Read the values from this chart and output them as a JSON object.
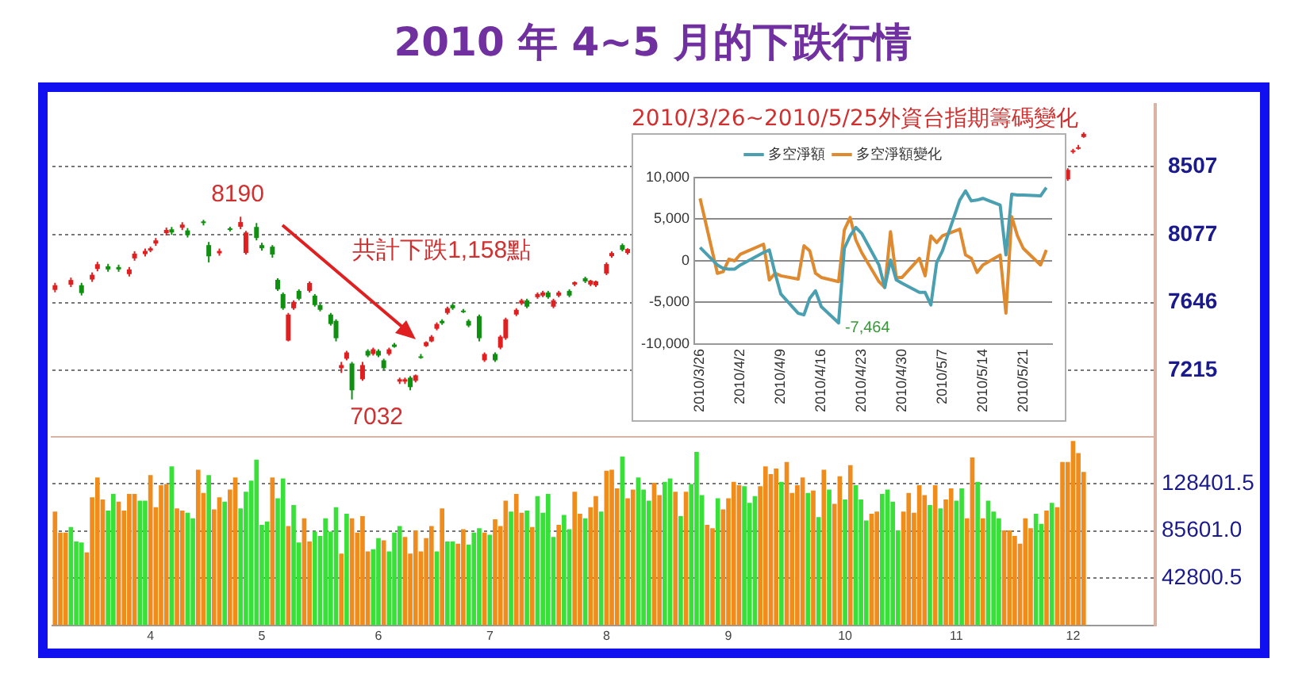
{
  "chart_data": [
    {
      "type": "candlestick",
      "title": "2010 年 4~5 月的下跌行情",
      "categories": [
        null,
        null,
        null,
        null,
        null,
        null,
        null,
        null,
        null,
        null,
        null,
        null,
        null,
        null,
        null,
        null,
        null,
        null,
        "4",
        null,
        null,
        null,
        null,
        null,
        null,
        null,
        null,
        null,
        null,
        null,
        null,
        null,
        null,
        null,
        null,
        null,
        null,
        null,
        null,
        "5",
        null,
        null,
        null,
        null,
        null,
        null,
        null,
        null,
        null,
        null,
        null,
        null,
        null,
        null,
        null,
        null,
        null,
        null,
        null,
        null,
        null,
        "6",
        null,
        null,
        null,
        null,
        null,
        null,
        null,
        null,
        null,
        null,
        null,
        null,
        null,
        null,
        null,
        null,
        null,
        null,
        null,
        null,
        "7",
        null,
        null,
        null,
        null,
        null,
        null,
        null,
        null,
        null,
        null,
        null,
        null,
        null,
        null,
        null,
        null,
        null,
        null,
        null,
        null,
        null,
        "8",
        null,
        null,
        null,
        null,
        null,
        null,
        null,
        null,
        null,
        null,
        null,
        null,
        null,
        null,
        null,
        null,
        null,
        null,
        null,
        null,
        null,
        null,
        "9",
        null,
        null,
        null,
        null,
        null,
        null,
        null,
        null,
        null,
        null,
        null,
        null,
        null,
        null,
        null,
        null,
        null,
        null,
        null,
        null,
        null,
        "10",
        null,
        null,
        null,
        null,
        null,
        null,
        null,
        null,
        null,
        null,
        null,
        null,
        null,
        null,
        null,
        null,
        null,
        null,
        null,
        null,
        "11",
        null,
        null,
        null,
        null,
        null,
        null,
        null,
        null,
        null,
        null,
        null,
        null,
        null,
        null,
        null,
        null,
        null,
        null,
        null,
        null,
        null,
        "12",
        null,
        null,
        null,
        null,
        null,
        null,
        null,
        null,
        null,
        null,
        null,
        null,
        null,
        null,
        null
      ],
      "ohlc": [
        [
          7726,
          7771,
          7711,
          7756
        ],
        null,
        null,
        [
          7759,
          7804,
          7744,
          7789
        ],
        null,
        [
          7756,
          7771,
          7691,
          7706
        ],
        null,
        [
          7792,
          7837,
          7777,
          7822
        ],
        [
          7859,
          7904,
          7844,
          7889
        ],
        null,
        [
          7876,
          7891,
          7841,
          7856
        ],
        null,
        [
          7871,
          7886,
          7841,
          7856
        ],
        null,
        [
          7826,
          7871,
          7811,
          7856
        ],
        [
          7926,
          7971,
          7911,
          7956
        ],
        null,
        [
          7953,
          7988,
          7938,
          7973
        ],
        [
          7975,
          8000,
          7965,
          7990
        ],
        [
          8020,
          8055,
          8005,
          8040
        ],
        null,
        [
          8086,
          8121,
          8071,
          8106
        ],
        [
          8110,
          8125,
          8075,
          8090
        ],
        null,
        [
          8120,
          8155,
          8105,
          8140
        ],
        [
          8103,
          8118,
          8058,
          8073
        ],
        null,
        null,
        [
          8160,
          8170,
          8135,
          8150
        ],
        [
          8010,
          8030,
          7900,
          7939
        ],
        null,
        [
          7958,
          7988,
          7943,
          7973
        ],
        null,
        [
          8116,
          8126,
          8096,
          8106
        ],
        null,
        [
          8126,
          8190,
          8111,
          8156
        ],
        [
          7960,
          8100,
          7950,
          8090
        ],
        null,
        [
          8125,
          8150,
          8040,
          8055
        ],
        [
          8010,
          8025,
          7975,
          7990
        ],
        null,
        [
          8000,
          8010,
          7930,
          7950
        ],
        [
          7790,
          7800,
          7720,
          7730
        ],
        [
          7700,
          7710,
          7600,
          7610
        ],
        [
          7405,
          7580,
          7400,
          7570
        ],
        [
          7610,
          7660,
          7600,
          7650
        ],
        [
          7720,
          7730,
          7660,
          7670
        ],
        null,
        [
          7720,
          7780,
          7710,
          7770
        ],
        [
          7690,
          7700,
          7620,
          7630
        ],
        [
          7630,
          7640,
          7590,
          7600
        ],
        null,
        [
          7570,
          7580,
          7500,
          7510
        ],
        [
          7530,
          7540,
          7400,
          7420
        ],
        [
          7230,
          7270,
          7200,
          7250
        ],
        [
          7290,
          7340,
          7280,
          7330
        ],
        [
          7260,
          7270,
          7032,
          7090
        ],
        null,
        [
          7160,
          7270,
          7150,
          7250
        ],
        [
          7340,
          7350,
          7300,
          7310
        ],
        [
          7320,
          7360,
          7310,
          7350
        ],
        [
          7340,
          7350,
          7300,
          7310
        ],
        [
          7280,
          7290,
          7220,
          7230
        ],
        [
          7320,
          7360,
          7310,
          7350
        ],
        [
          7380,
          7390,
          7360,
          7365
        ],
        [
          7145,
          7170,
          7130,
          7160
        ],
        [
          7145,
          7170,
          7130,
          7160
        ],
        [
          7170,
          7180,
          7090,
          7110
        ],
        [
          7150,
          7190,
          7140,
          7185
        ],
        [
          7305,
          7320,
          7290,
          7300
        ],
        [
          7370,
          7400,
          7365,
          7395
        ],
        [
          7400,
          7440,
          7395,
          7430
        ],
        [
          7480,
          7520,
          7470,
          7510
        ],
        [
          7530,
          7540,
          7505,
          7515
        ],
        [
          7580,
          7620,
          7570,
          7610
        ],
        [
          7630,
          7640,
          7600,
          7610
        ],
        null,
        [
          7595,
          7605,
          7580,
          7585
        ],
        [
          7530,
          7540,
          7490,
          7500
        ],
        null,
        [
          7560,
          7570,
          7400,
          7420
        ],
        [
          7280,
          7330,
          7270,
          7320
        ],
        null,
        [
          7320,
          7330,
          7270,
          7280
        ],
        [
          7360,
          7440,
          7350,
          7430
        ],
        [
          7420,
          7550,
          7410,
          7540
        ],
        null,
        [
          7570,
          7610,
          7560,
          7600
        ],
        [
          7640,
          7670,
          7630,
          7660
        ],
        [
          7660,
          7670,
          7610,
          7620
        ],
        null,
        [
          7680,
          7710,
          7670,
          7700
        ],
        [
          7690,
          7720,
          7680,
          7710
        ],
        [
          7710,
          7720,
          7670,
          7680
        ],
        [
          7620,
          7670,
          7610,
          7660
        ],
        [
          7690,
          7720,
          7680,
          7710
        ],
        null,
        [
          7720,
          7730,
          7680,
          7690
        ],
        [
          7760,
          7780,
          7750,
          7775
        ],
        null,
        [
          7800,
          7810,
          7770,
          7780
        ],
        [
          7760,
          7790,
          7750,
          7785
        ],
        [
          7755,
          7785,
          7745,
          7780
        ],
        null,
        [
          7830,
          7900,
          7820,
          7890
        ],
        [
          7940,
          7970,
          7930,
          7960
        ],
        null,
        [
          8010,
          8020,
          7970,
          7980
        ],
        [
          7960,
          7990,
          7950,
          7985
        ],
        null,
        null,
        null,
        null,
        null,
        null,
        null,
        null,
        null,
        null,
        null,
        null,
        null,
        null,
        null,
        null,
        null,
        null,
        null,
        null,
        null,
        null,
        null,
        null,
        null,
        null,
        null,
        null,
        null,
        null,
        null,
        null,
        null,
        null,
        null,
        null,
        null,
        null,
        null,
        null,
        null,
        null,
        null,
        null,
        null,
        null,
        null,
        null,
        null,
        null,
        null,
        null,
        null,
        null,
        null,
        null,
        null,
        null,
        null,
        null,
        null,
        null,
        null,
        null,
        null,
        null,
        null,
        null,
        null,
        null,
        null,
        null,
        null,
        null,
        null,
        null,
        null,
        null,
        null,
        null,
        null,
        null,
        [
          8427,
          8497,
          8417,
          8487
        ],
        [
          8600,
          8620,
          8590,
          8610
        ],
        [
          8620,
          8645,
          8615,
          8630
        ],
        [
          8695,
          8725,
          8690,
          8715
        ],
        null,
        null,
        null,
        null,
        null,
        null,
        null,
        null,
        null,
        null,
        null,
        null,
        null
      ],
      "colors": [
        "#e02020",
        null,
        null,
        "#e02020",
        null,
        "#109010",
        null,
        "#e02020",
        "#e02020",
        null,
        "#109010",
        null,
        "#109010",
        null,
        "#e02020",
        "#e02020",
        null,
        "#e02020",
        "#e02020",
        "#e02020",
        null,
        "#e02020",
        "#109010",
        null,
        "#e02020",
        "#109010",
        null,
        null,
        "#109010",
        "#109010",
        null,
        "#e02020",
        null,
        "#109010",
        null,
        "#e02020",
        "#e02020",
        null,
        "#109010",
        "#109010",
        null,
        "#109010",
        "#109010",
        "#109010",
        "#e02020",
        "#e02020",
        "#109010",
        null,
        "#e02020",
        "#109010",
        "#109010",
        null,
        "#109010",
        "#109010",
        "#e02020",
        "#e02020",
        "#109010",
        null,
        "#e02020",
        "#109010",
        "#e02020",
        "#109010",
        "#109010",
        "#e02020",
        "#109010",
        "#e02020",
        "#e02020",
        "#109010",
        "#e02020",
        "#109010",
        "#e02020",
        "#e02020",
        "#e02020",
        "#109010",
        "#e02020",
        "#109010",
        null,
        "#109010",
        "#109010",
        null,
        "#109010",
        "#e02020",
        null,
        "#109010",
        "#e02020",
        "#e02020",
        null,
        "#e02020",
        "#e02020",
        "#109010",
        null,
        "#e02020",
        "#e02020",
        "#109010",
        "#e02020",
        "#e02020",
        null,
        "#109010",
        "#e02020",
        null,
        "#109010",
        "#e02020",
        "#e02020",
        null,
        "#e02020",
        "#e02020",
        null,
        "#109010",
        "#e02020",
        null,
        null,
        null,
        null,
        null,
        null,
        null,
        null,
        null,
        null,
        null,
        null,
        null,
        null,
        null,
        null,
        null,
        null,
        null,
        null,
        null,
        null,
        null,
        null,
        null,
        null,
        null,
        null,
        null,
        null,
        null,
        null,
        null,
        null,
        null,
        null,
        null,
        null,
        null,
        null,
        null,
        null,
        null,
        null,
        null,
        null,
        null,
        null,
        null,
        null,
        null,
        null,
        null,
        null,
        null,
        null,
        null,
        null,
        null,
        null,
        null,
        null,
        null,
        null,
        null,
        null,
        null,
        null,
        null,
        null,
        null,
        null,
        null,
        null,
        null,
        null,
        null,
        null,
        null,
        null,
        null,
        null,
        "#e02020",
        "#e02020",
        "#e02020",
        "#e02020",
        null,
        null,
        null,
        null,
        null,
        null,
        null,
        null,
        null,
        null,
        null,
        null,
        null
      ],
      "ylim": [
        6790,
        8900
      ],
      "yticks": [
        7215,
        7646,
        8077,
        8507
      ],
      "grid": "y",
      "tick_labels": "y",
      "annotations": [
        "8190",
        "7032",
        "共計下跌1,158點"
      ]
    },
    {
      "type": "bar",
      "categories": [
        null,
        null,
        null,
        null,
        null,
        null,
        null,
        null,
        null,
        null,
        null,
        null,
        null,
        null,
        null,
        null,
        null,
        null,
        "4",
        null,
        null,
        null,
        null,
        null,
        null,
        null,
        null,
        null,
        null,
        null,
        null,
        null,
        null,
        null,
        null,
        null,
        null,
        null,
        null,
        "5",
        null,
        null,
        null,
        null,
        null,
        null,
        null,
        null,
        null,
        null,
        null,
        null,
        null,
        null,
        null,
        null,
        null,
        null,
        null,
        null,
        null,
        "6",
        null,
        null,
        null,
        null,
        null,
        null,
        null,
        null,
        null,
        null,
        null,
        null,
        null,
        null,
        null,
        null,
        null,
        null,
        null,
        null,
        "7",
        null,
        null,
        null,
        null,
        null,
        null,
        null,
        null,
        null,
        null,
        null,
        null,
        null,
        null,
        null,
        null,
        null,
        null,
        null,
        null,
        null,
        "8",
        null,
        null,
        null,
        null,
        null,
        null,
        null,
        null,
        null,
        null,
        null,
        null,
        null,
        null,
        null,
        null,
        null,
        null,
        null,
        null,
        null,
        null,
        "9",
        null,
        null,
        null,
        null,
        null,
        null,
        null,
        null,
        null,
        null,
        null,
        null,
        null,
        null,
        null,
        null,
        null,
        null,
        null,
        null,
        null,
        "10",
        null,
        null,
        null,
        null,
        null,
        null,
        null,
        null,
        null,
        null,
        null,
        null,
        null,
        null,
        null,
        null,
        null,
        null,
        null,
        null,
        "11",
        null,
        null,
        null,
        null,
        null,
        null,
        null,
        null,
        null,
        null,
        null,
        null,
        null,
        null,
        null,
        null,
        null,
        null,
        null,
        null,
        null,
        "12",
        null,
        null,
        null,
        null,
        null,
        null,
        null,
        null,
        null,
        null,
        null,
        null,
        null,
        null,
        null
      ],
      "values": [
        103000,
        84000,
        84000,
        89000,
        76000,
        75000,
        66000,
        116000,
        134000,
        114000,
        104000,
        119000,
        112000,
        104000,
        119000,
        119000,
        113000,
        113000,
        136000,
        107000,
        127000,
        128000,
        144000,
        106000,
        104000,
        102000,
        97000,
        141000,
        120000,
        136000,
        105000,
        116000,
        112000,
        123000,
        134000,
        106000,
        121000,
        131000,
        150000,
        91000,
        94000,
        134000,
        115000,
        133000,
        90000,
        109000,
        75000,
        97000,
        76000,
        85000,
        81000,
        97000,
        85000,
        107000,
        65000,
        101000,
        97000,
        84000,
        99000,
        67000,
        69000,
        79000,
        77000,
        67000,
        84000,
        90000,
        80000,
        65000,
        86000,
        67000,
        79000,
        90000,
        67000,
        106000,
        76000,
        76000,
        74000,
        87000,
        73000,
        84000,
        88000,
        84000,
        82000,
        96000,
        90000,
        113000,
        103000,
        119000,
        102000,
        104000,
        89000,
        117000,
        102000,
        119000,
        80000,
        91000,
        100000,
        87000,
        121000,
        101000,
        97000,
        107000,
        117000,
        103000,
        140000,
        141000,
        124000,
        153000,
        115000,
        123000,
        134000,
        123000,
        113000,
        129000,
        118000,
        130000,
        133000,
        121000,
        99000,
        121000,
        128000,
        157000,
        118000,
        91000,
        88000,
        115000,
        105000,
        115000,
        130000,
        127000,
        126000,
        111000,
        117000,
        126000,
        144000,
        137000,
        142000,
        130000,
        148000,
        120000,
        127000,
        134000,
        120000,
        122000,
        98000,
        141000,
        123000,
        110000,
        135000,
        114000,
        145000,
        127000,
        114000,
        95000,
        101000,
        103000,
        119000,
        123000,
        112000,
        86000,
        103000,
        120000,
        102000,
        127000,
        118000,
        109000,
        127000,
        106000,
        114000,
        124000,
        113000,
        124000,
        97000,
        152000,
        130000,
        97000,
        113000,
        103000,
        97000,
        86000,
        86000,
        81000,
        74000,
        97000,
        88000,
        101000,
        92000,
        104000,
        111000,
        107000,
        148000,
        148000,
        167000,
        156000,
        139000,
        null,
        null,
        null,
        null,
        null,
        null,
        null,
        null,
        null,
        null,
        null,
        null,
        null
      ],
      "colors": [
        "#f08c1c",
        "#f08c1c",
        "#f08c1c",
        "#3ae03a",
        "#3ae03a",
        "#3ae03a",
        "#f08c1c",
        "#f08c1c",
        "#f08c1c",
        "#f08c1c",
        "#3ae03a",
        "#3ae03a",
        "#f08c1c",
        "#f08c1c",
        "#f08c1c",
        "#f08c1c",
        "#3ae03a",
        "#3ae03a",
        "#f08c1c",
        "#f08c1c",
        "#f08c1c",
        "#f08c1c",
        "#3ae03a",
        "#f08c1c",
        "#f08c1c",
        "#3ae03a",
        "#3ae03a",
        "#f08c1c",
        "#f08c1c",
        "#3ae03a",
        "#f08c1c",
        "#f08c1c",
        "#3ae03a",
        "#f08c1c",
        "#f08c1c",
        "#3ae03a",
        "#3ae03a",
        "#3ae03a",
        "#3ae03a",
        "#3ae03a",
        "#3ae03a",
        "#f08c1c",
        "#3ae03a",
        "#3ae03a",
        "#f08c1c",
        "#3ae03a",
        "#3ae03a",
        "#f08c1c",
        "#f08c1c",
        "#3ae03a",
        "#3ae03a",
        "#3ae03a",
        "#3ae03a",
        "#3ae03a",
        "#f08c1c",
        "#3ae03a",
        "#f08c1c",
        "#f08c1c",
        "#f08c1c",
        "#f08c1c",
        "#3ae03a",
        "#3ae03a",
        "#f08c1c",
        "#3ae03a",
        "#3ae03a",
        "#3ae03a",
        "#f08c1c",
        "#f08c1c",
        "#f08c1c",
        "#f08c1c",
        "#f08c1c",
        "#f08c1c",
        "#3ae03a",
        "#f08c1c",
        "#3ae03a",
        "#3ae03a",
        "#f08c1c",
        "#f08c1c",
        "#3ae03a",
        "#3ae03a",
        "#3ae03a",
        "#f08c1c",
        "#3ae03a",
        "#f08c1c",
        "#f08c1c",
        "#f08c1c",
        "#3ae03a",
        "#f08c1c",
        "#f08c1c",
        "#3ae03a",
        "#f08c1c",
        "#3ae03a",
        "#3ae03a",
        "#3ae03a",
        "#3ae03a",
        "#f08c1c",
        "#3ae03a",
        "#3ae03a",
        "#f08c1c",
        "#f08c1c",
        "#3ae03a",
        "#f08c1c",
        "#f08c1c",
        "#3ae03a",
        "#f08c1c",
        "#f08c1c",
        "#f08c1c",
        "#3ae03a",
        "#f08c1c",
        "#f08c1c",
        "#3ae03a",
        "#3ae03a",
        "#3ae03a",
        "#f08c1c",
        "#f08c1c",
        "#3ae03a",
        "#3ae03a",
        "#f08c1c",
        "#3ae03a",
        "#f08c1c",
        "#3ae03a",
        "#3ae03a",
        "#3ae03a",
        "#f08c1c",
        "#f08c1c",
        "#3ae03a",
        "#f08c1c",
        "#f08c1c",
        "#f08c1c",
        "#f08c1c",
        "#3ae03a",
        "#3ae03a",
        "#3ae03a",
        "#f08c1c",
        "#f08c1c",
        "#f08c1c",
        "#f08c1c",
        "#3ae03a",
        "#f08c1c",
        "#f08c1c",
        "#f08c1c",
        "#f08c1c",
        "#3ae03a",
        "#f08c1c",
        "#3ae03a",
        "#f08c1c",
        "#3ae03a",
        "#f08c1c",
        "#f08c1c",
        "#3ae03a",
        "#f08c1c",
        "#3ae03a",
        "#3ae03a",
        "#3ae03a",
        "#f08c1c",
        "#f08c1c",
        "#3ae03a",
        "#3ae03a",
        "#3ae03a",
        "#3ae03a",
        "#f08c1c",
        "#f08c1c",
        "#f08c1c",
        "#f08c1c",
        "#f08c1c",
        "#3ae03a",
        "#f08c1c",
        "#3ae03a",
        "#f08c1c",
        "#f08c1c",
        "#3ae03a",
        "#3ae03a",
        "#f08c1c",
        "#f08c1c",
        "#3ae03a",
        "#f08c1c",
        "#3ae03a",
        "#3ae03a",
        "#3ae03a",
        "#f08c1c",
        "#f08c1c",
        "#f08c1c",
        "#f08c1c",
        "#f08c1c",
        "#f08c1c",
        "#3ae03a",
        "#3ae03a",
        "#f08c1c",
        "#3ae03a",
        "#f08c1c",
        "#f08c1c",
        "#f08c1c",
        "#f08c1c",
        "#f08c1c",
        "#f08c1c",
        null,
        null,
        null,
        null,
        null,
        null,
        null,
        null,
        null,
        null,
        null,
        null,
        null
      ],
      "ylim": [
        0,
        170000
      ],
      "yticks": [
        42800.5,
        {
          "value": 85601.0,
          "label": "85601.0"
        },
        128401.5
      ],
      "grid": "y"
    },
    {
      "type": "line",
      "title": "2010/3/26~2010/5/25外資台指期籌碼變化",
      "x": [
        "2010-03-26",
        "2010-03-29",
        "2010-03-30",
        "2010-03-31",
        "2010-04-01",
        "2010-04-02",
        "2010-04-06",
        "2010-04-07",
        "2010-04-08",
        "2010-04-09",
        "2010-04-12",
        "2010-04-13",
        "2010-04-14",
        "2010-04-15",
        "2010-04-16",
        "2010-04-19",
        "2010-04-20",
        "2010-04-21",
        "2010-04-22",
        "2010-04-23",
        "2010-04-26",
        "2010-04-27",
        "2010-04-28",
        "2010-04-29",
        "2010-04-30",
        "2010-05-03",
        "2010-05-04",
        "2010-05-05",
        "2010-05-06",
        "2010-05-07",
        "2010-05-10",
        "2010-05-11",
        "2010-05-12",
        "2010-05-13",
        "2010-05-14",
        "2010-05-17",
        "2010-05-18",
        "2010-05-19",
        "2010-05-20",
        "2010-05-21",
        "2010-05-24",
        "2010-05-25"
      ],
      "series": [
        {
          "name": "多空淨額",
          "color": "#4a9fb0",
          "values": [
            1600,
            -500,
            -900,
            -1000,
            -1000,
            -500,
            1000,
            1300,
            -1500,
            -4000,
            -6300,
            -6500,
            -4500,
            -3600,
            -5500,
            -7464,
            1500,
            3000,
            4000,
            3300,
            -500,
            -3200,
            100,
            -2300,
            -2700,
            -3800,
            -3800,
            -5300,
            -200,
            1200,
            7300,
            8400,
            7200,
            7300,
            7500,
            6700,
            700,
            8000,
            7900,
            7900,
            7800,
            8800
          ]
        },
        {
          "name": "多空淨額變化",
          "color": "#e08a30",
          "values": [
            7500,
            -1500,
            -1300,
            200,
            0,
            800,
            2000,
            -2300,
            -1500,
            -1800,
            -2200,
            1800,
            1200,
            -1500,
            -2000,
            -2500,
            3700,
            5200,
            2500,
            1000,
            -2500,
            -3200,
            3500,
            -2000,
            -2000,
            300,
            -1800,
            3000,
            2200,
            3000,
            3800,
            700,
            300,
            -1400,
            -500,
            700,
            -6300,
            5300,
            3000,
            1500,
            -500,
            1300
          ]
        }
      ],
      "xlim": [
        "2010-03-25",
        "2010-05-26"
      ],
      "xticks": [
        {
          "value": "2010-03-26",
          "label": "2010/3/26"
        },
        {
          "value": "2010-04-02",
          "label": "2010/4/2"
        },
        {
          "value": "2010-04-09",
          "label": "2010/4/9"
        },
        {
          "value": "2010-04-16",
          "label": "2010/4/16"
        },
        {
          "value": "2010-04-23",
          "label": "2010/4/23"
        },
        {
          "value": "2010-04-30",
          "label": "2010/4/30"
        },
        {
          "value": "2010-05-07",
          "label": "2010/5/7"
        },
        {
          "value": "2010-05-14",
          "label": "2010/5/14"
        },
        {
          "value": "2010-05-21",
          "label": "2010/5/21"
        }
      ],
      "ylim": [
        -10000,
        10000
      ],
      "yticks": [
        {
          "value": -10000,
          "label": "-10,000"
        },
        {
          "value": -5000,
          "label": "-5,000"
        },
        0,
        {
          "value": 5000,
          "label": "5,000"
        },
        {
          "value": 10000,
          "label": "10,000"
        }
      ],
      "grid": "y",
      "legend": "top",
      "marker": "none",
      "annotations": [
        {
          "text": "-7,464",
          "x": "2010-04-19",
          "y": -7464
        }
      ]
    }
  ]
}
